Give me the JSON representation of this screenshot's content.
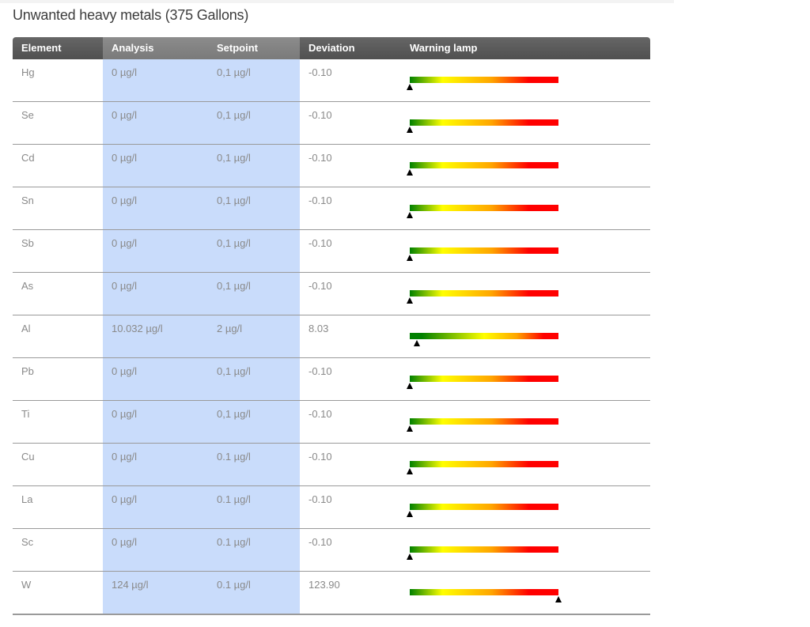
{
  "title": "Unwanted heavy metals (375 Gallons)",
  "columns": {
    "element": "Element",
    "analysis": "Analysis",
    "setpoint": "Setpoint",
    "deviation": "Deviation",
    "warning_lamp": "Warning lamp"
  },
  "colors": {
    "header_bg": "#5a5a5a",
    "highlight_column": "#c9dcfb",
    "lamp_green": "#008000",
    "lamp_yellow": "#ffff00",
    "lamp_orange": "#ffa500",
    "lamp_red": "#ff0000"
  },
  "rows": [
    {
      "element": "Hg",
      "analysis": "0 µg/l",
      "setpoint": "0,1 µg/l",
      "deviation": "-0.10",
      "lamp_level": 0,
      "lamp_style": "a"
    },
    {
      "element": "Se",
      "analysis": "0 µg/l",
      "setpoint": "0,1 µg/l",
      "deviation": "-0.10",
      "lamp_level": 0,
      "lamp_style": "a"
    },
    {
      "element": "Cd",
      "analysis": "0 µg/l",
      "setpoint": "0,1 µg/l",
      "deviation": "-0.10",
      "lamp_level": 0,
      "lamp_style": "a"
    },
    {
      "element": "Sn",
      "analysis": "0 µg/l",
      "setpoint": "0,1 µg/l",
      "deviation": "-0.10",
      "lamp_level": 0,
      "lamp_style": "a"
    },
    {
      "element": "Sb",
      "analysis": "0 µg/l",
      "setpoint": "0,1 µg/l",
      "deviation": "-0.10",
      "lamp_level": 0,
      "lamp_style": "a"
    },
    {
      "element": "As",
      "analysis": "0 µg/l",
      "setpoint": "0,1 µg/l",
      "deviation": "-0.10",
      "lamp_level": 0,
      "lamp_style": "a"
    },
    {
      "element": "Al",
      "analysis": "10.032 µg/l",
      "setpoint": "2 µg/l",
      "deviation": "8.03",
      "lamp_level": 0.05,
      "lamp_style": "b"
    },
    {
      "element": "Pb",
      "analysis": "0 µg/l",
      "setpoint": "0,1 µg/l",
      "deviation": "-0.10",
      "lamp_level": 0,
      "lamp_style": "a"
    },
    {
      "element": "Ti",
      "analysis": "0 µg/l",
      "setpoint": "0,1 µg/l",
      "deviation": "-0.10",
      "lamp_level": 0,
      "lamp_style": "a"
    },
    {
      "element": "Cu",
      "analysis": "0 µg/l",
      "setpoint": "0.1 µg/l",
      "deviation": "-0.10",
      "lamp_level": 0,
      "lamp_style": "a"
    },
    {
      "element": "La",
      "analysis": "0 µg/l",
      "setpoint": "0.1 µg/l",
      "deviation": "-0.10",
      "lamp_level": 0,
      "lamp_style": "a"
    },
    {
      "element": "Sc",
      "analysis": "0 µg/l",
      "setpoint": "0.1 µg/l",
      "deviation": "-0.10",
      "lamp_level": 0,
      "lamp_style": "a"
    },
    {
      "element": "W",
      "analysis": "124 µg/l",
      "setpoint": "0.1 µg/l",
      "deviation": "123.90",
      "lamp_level": 1,
      "lamp_style": "a"
    }
  ]
}
